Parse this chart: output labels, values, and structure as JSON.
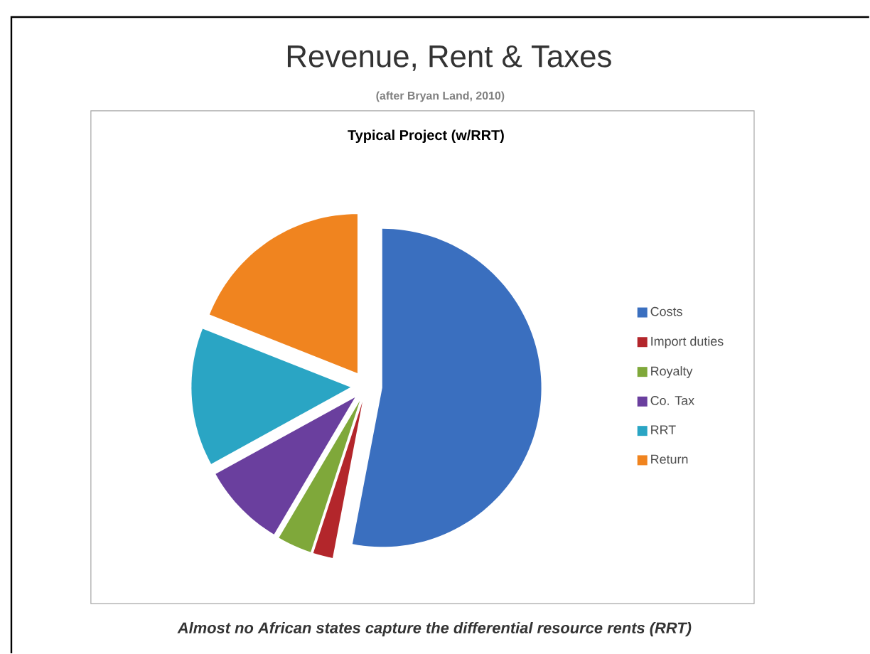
{
  "chart_data": {
    "type": "pie",
    "title": "Revenue, Rent & Taxes",
    "subtitle": "(after Bryan Land, 2010)",
    "categories": [
      "Costs",
      "Import duties",
      "Royalty",
      "Co. Tax",
      "RRT",
      "Return"
    ],
    "values": [
      53,
      2,
      3.5,
      8.5,
      14,
      19
    ],
    "colors": [
      "#3a6fbf",
      "#b3262b",
      "#7fa83a",
      "#6a3f9e",
      "#2aa5c4",
      "#f0841f"
    ],
    "legend": "right",
    "annotations": [
      "Typical Project (w/RRT)",
      "Almost no African states capture the differential resource rents (RRT)"
    ]
  }
}
